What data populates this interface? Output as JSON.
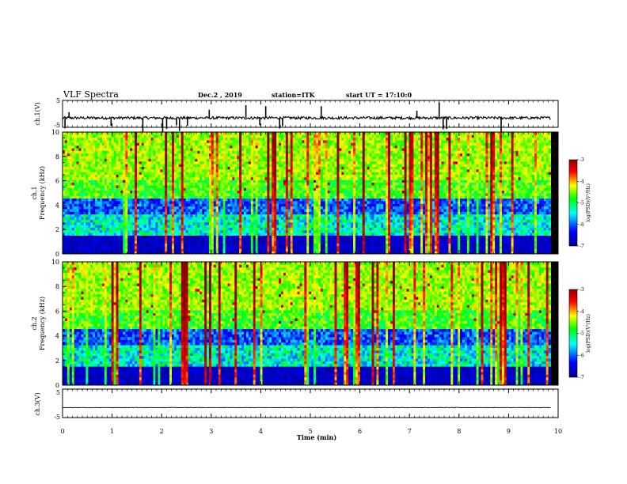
{
  "header": {
    "title": "VLF Spectra",
    "date": "Dec.2 , 2019",
    "station": "station=ITK",
    "start": "start UT = 17:10:0"
  },
  "chart_data": [
    {
      "type": "line",
      "ylabel": "ch.1(V)",
      "ylim": [
        -5,
        5
      ],
      "y_ticks": [
        "5",
        "-5"
      ],
      "x_range_min": [
        0,
        9.85
      ],
      "baseline_v": -1.5,
      "spike_times_min": [
        0.05,
        0.13,
        0.98,
        1.62,
        2.02,
        2.1,
        2.3,
        2.36,
        2.52,
        2.96,
        3.7,
        3.98,
        4.1,
        4.38,
        4.44,
        5.22,
        7.15,
        7.6,
        7.68,
        7.75,
        8.85
      ]
    },
    {
      "type": "heatmap",
      "ylabel": "ch.1\nFrequency (kHz)",
      "ylim": [
        0,
        10
      ],
      "y_ticks": [
        "0",
        "2",
        "4",
        "6",
        "8",
        "10"
      ],
      "colorbar": {
        "label": "log(PSD)(V²/Hz)",
        "range": [
          -7,
          -3
        ],
        "ticks": [
          "-3",
          "-4",
          "-5",
          "-6",
          "-7"
        ]
      }
    },
    {
      "type": "heatmap",
      "ylabel": "ch.2\nFrequency (kHz)",
      "ylim": [
        0,
        10
      ],
      "y_ticks": [
        "0",
        "2",
        "4",
        "6",
        "8",
        "10"
      ],
      "colorbar": {
        "label": "log(PSD)(V²/Hz)",
        "range": [
          -7,
          -3
        ],
        "ticks": [
          "-3",
          "-4",
          "-5",
          "-6",
          "-7"
        ]
      }
    },
    {
      "type": "line",
      "ylabel": "ch.3(V)",
      "ylim": [
        -5,
        5
      ],
      "y_ticks": [
        "5",
        "-5"
      ],
      "x_range_min": [
        0,
        9.85
      ],
      "baseline_v": -1.5
    }
  ],
  "xaxis": {
    "label": "Time (min)",
    "range": [
      0,
      10
    ],
    "ticks": [
      "0",
      "1",
      "2",
      "3",
      "4",
      "5",
      "6",
      "7",
      "8",
      "9",
      "10"
    ]
  },
  "colors": {
    "colormap": [
      "#00008f",
      "#0000ff",
      "#00ffff",
      "#00ff00",
      "#ffff00",
      "#ff0000",
      "#8f0000"
    ]
  }
}
